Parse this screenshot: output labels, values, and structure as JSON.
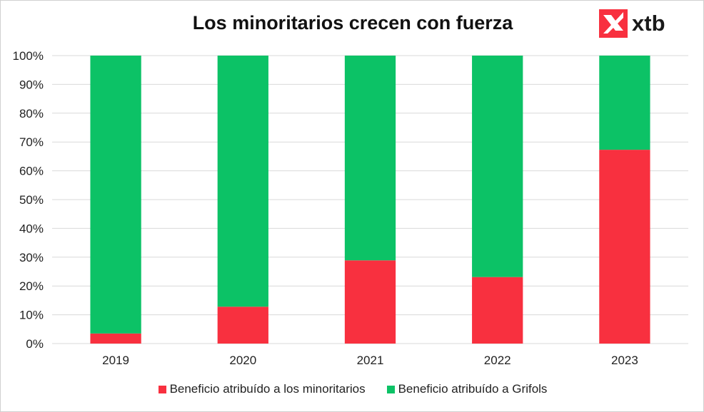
{
  "chart_data": {
    "type": "bar",
    "stacked": true,
    "title": "Los minoritarios crecen con fuerza",
    "categories": [
      "2019",
      "2020",
      "2021",
      "2022",
      "2023"
    ],
    "series": [
      {
        "name": "Beneficio atribuído a los minoritarios",
        "color": "#f8303f",
        "values": [
          3.5,
          12.8,
          28.9,
          23.1,
          67.3
        ]
      },
      {
        "name": "Beneficio atribuído a Grifols",
        "color": "#0cc266",
        "values": [
          96.5,
          87.2,
          71.1,
          76.9,
          32.7
        ]
      }
    ],
    "ylim": [
      0,
      100
    ],
    "yticks": [
      "0%",
      "10%",
      "20%",
      "30%",
      "40%",
      "50%",
      "60%",
      "70%",
      "80%",
      "90%",
      "100%"
    ],
    "grid": true,
    "legend_position": "bottom"
  },
  "logo": {
    "text": "xtb",
    "icon": "xtb-x-icon"
  }
}
